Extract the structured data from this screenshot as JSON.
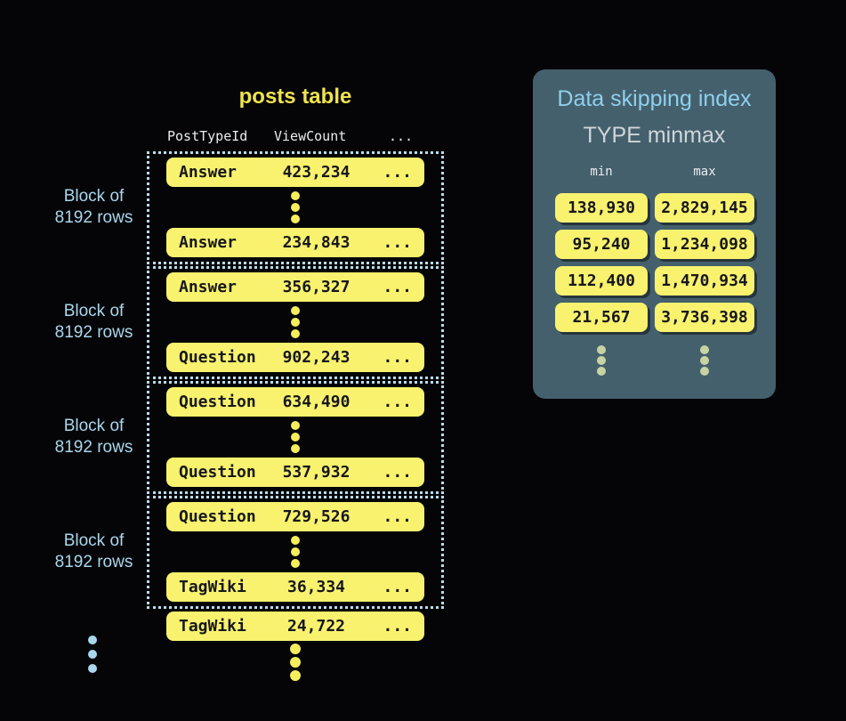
{
  "posts_table": {
    "title": "posts table",
    "header": {
      "col1": "PostTypeId",
      "col2": "ViewCount",
      "col3": "..."
    },
    "block_label": {
      "line1": "Block of",
      "line2": "8192 rows"
    },
    "blocks": [
      {
        "first": {
          "type": "Answer",
          "views": "423,234",
          "more": "..."
        },
        "last": {
          "type": "Answer",
          "views": "234,843",
          "more": "..."
        }
      },
      {
        "first": {
          "type": "Answer",
          "views": "356,327",
          "more": "..."
        },
        "last": {
          "type": "Question",
          "views": "902,243",
          "more": "..."
        }
      },
      {
        "first": {
          "type": "Question",
          "views": "634,490",
          "more": "..."
        },
        "last": {
          "type": "Question",
          "views": "537,932",
          "more": "..."
        }
      },
      {
        "first": {
          "type": "Question",
          "views": "729,526",
          "more": "..."
        },
        "last": {
          "type": "TagWiki",
          "views": "36,334",
          "more": "..."
        }
      }
    ],
    "overflow_row": {
      "type": "TagWiki",
      "views": "24,722",
      "more": "..."
    }
  },
  "index_panel": {
    "title": "Data skipping index",
    "subtitle": "TYPE minmax",
    "columns": {
      "min": "min",
      "max": "max"
    },
    "entries": [
      {
        "min": "138,930",
        "max": "2,829,145"
      },
      {
        "min": "95,240",
        "max": "1,234,098"
      },
      {
        "min": "112,400",
        "max": "1,470,934"
      },
      {
        "min": "21,567",
        "max": "3,736,398"
      }
    ]
  },
  "colors": {
    "background": "#050508",
    "row_yellow": "#f8f26e",
    "title_yellow": "#efe34e",
    "accent_blue": "#a9d7ec",
    "border_blue": "#b9dcec",
    "panel_background": "#45606d",
    "panel_title_blue": "#8ed0ee",
    "subtitle_gray": "#ced6db",
    "header_white": "#e9edee",
    "dark_text": "#17171c",
    "pale_dot_green": "#c7d3a2"
  }
}
